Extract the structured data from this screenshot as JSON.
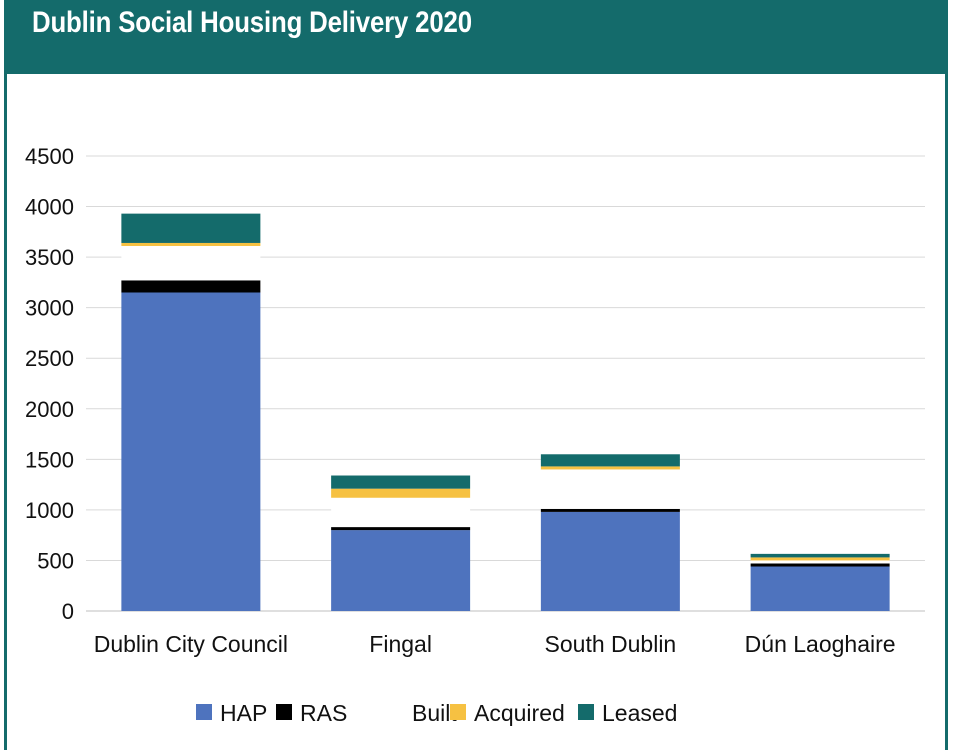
{
  "chart_data": {
    "type": "bar",
    "stacked": true,
    "title": "Dublin Social Housing Delivery 2020",
    "categories": [
      "Dublin City Council",
      "Fingal",
      "South Dublin",
      "Dún Laoghaire"
    ],
    "series": [
      {
        "name": "HAP",
        "color": "#4e73be",
        "values": [
          3150,
          800,
          980,
          440
        ]
      },
      {
        "name": "RAS",
        "color": "#000000",
        "values": [
          120,
          30,
          30,
          30
        ]
      },
      {
        "name": "Built",
        "color": "#ffffff",
        "values": [
          340,
          290,
          390,
          30
        ]
      },
      {
        "name": "Acquired",
        "color": "#f6c142",
        "values": [
          30,
          90,
          30,
          30
        ]
      },
      {
        "name": "Leased",
        "color": "#146b6b",
        "values": [
          290,
          130,
          120,
          35
        ]
      }
    ],
    "yticks": [
      "0",
      "500",
      "1000",
      "1500",
      "2000",
      "2500",
      "3000",
      "3500",
      "4000",
      "4500"
    ],
    "ylim": [
      0,
      4500
    ],
    "grid": true,
    "legend_position": "bottom"
  }
}
